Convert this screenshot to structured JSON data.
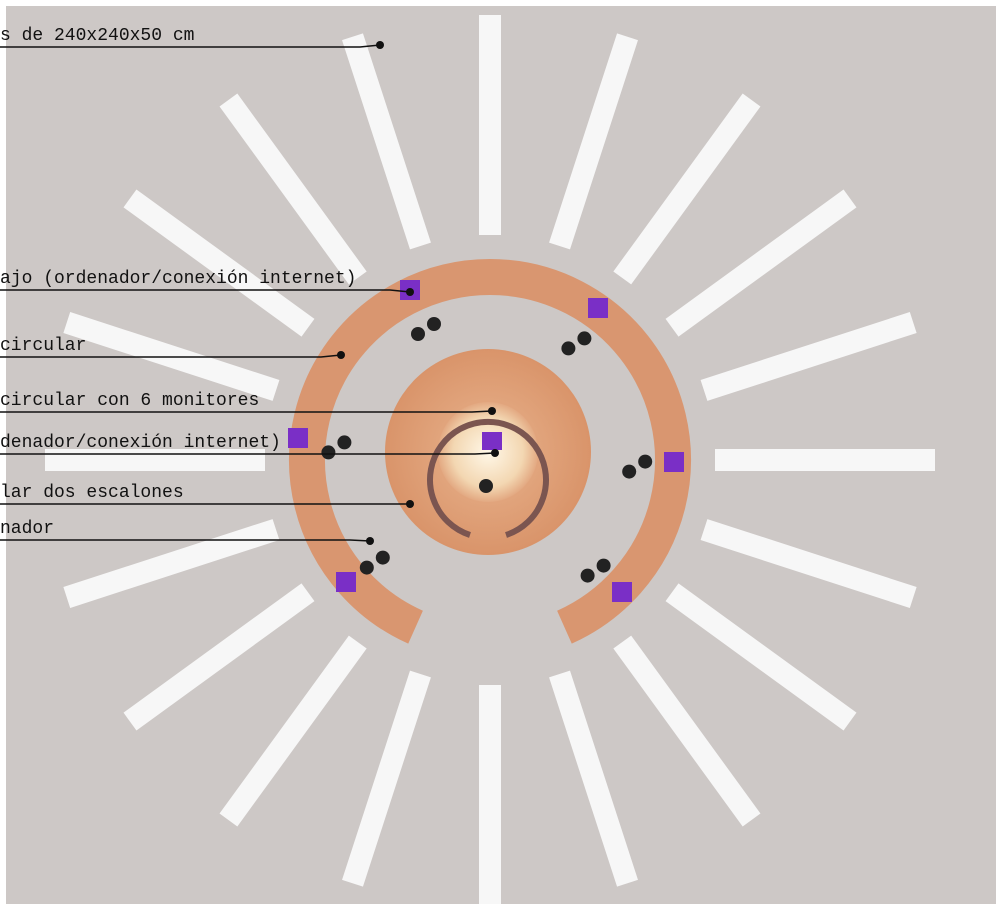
{
  "labels": [
    "s de 240x240x50 cm",
    "ajo (ordenador/conexión internet)",
    "circular",
    "circular con 6 monitores",
    "denador/conexión internet)",
    "lar dos escalones",
    "nador"
  ]
}
